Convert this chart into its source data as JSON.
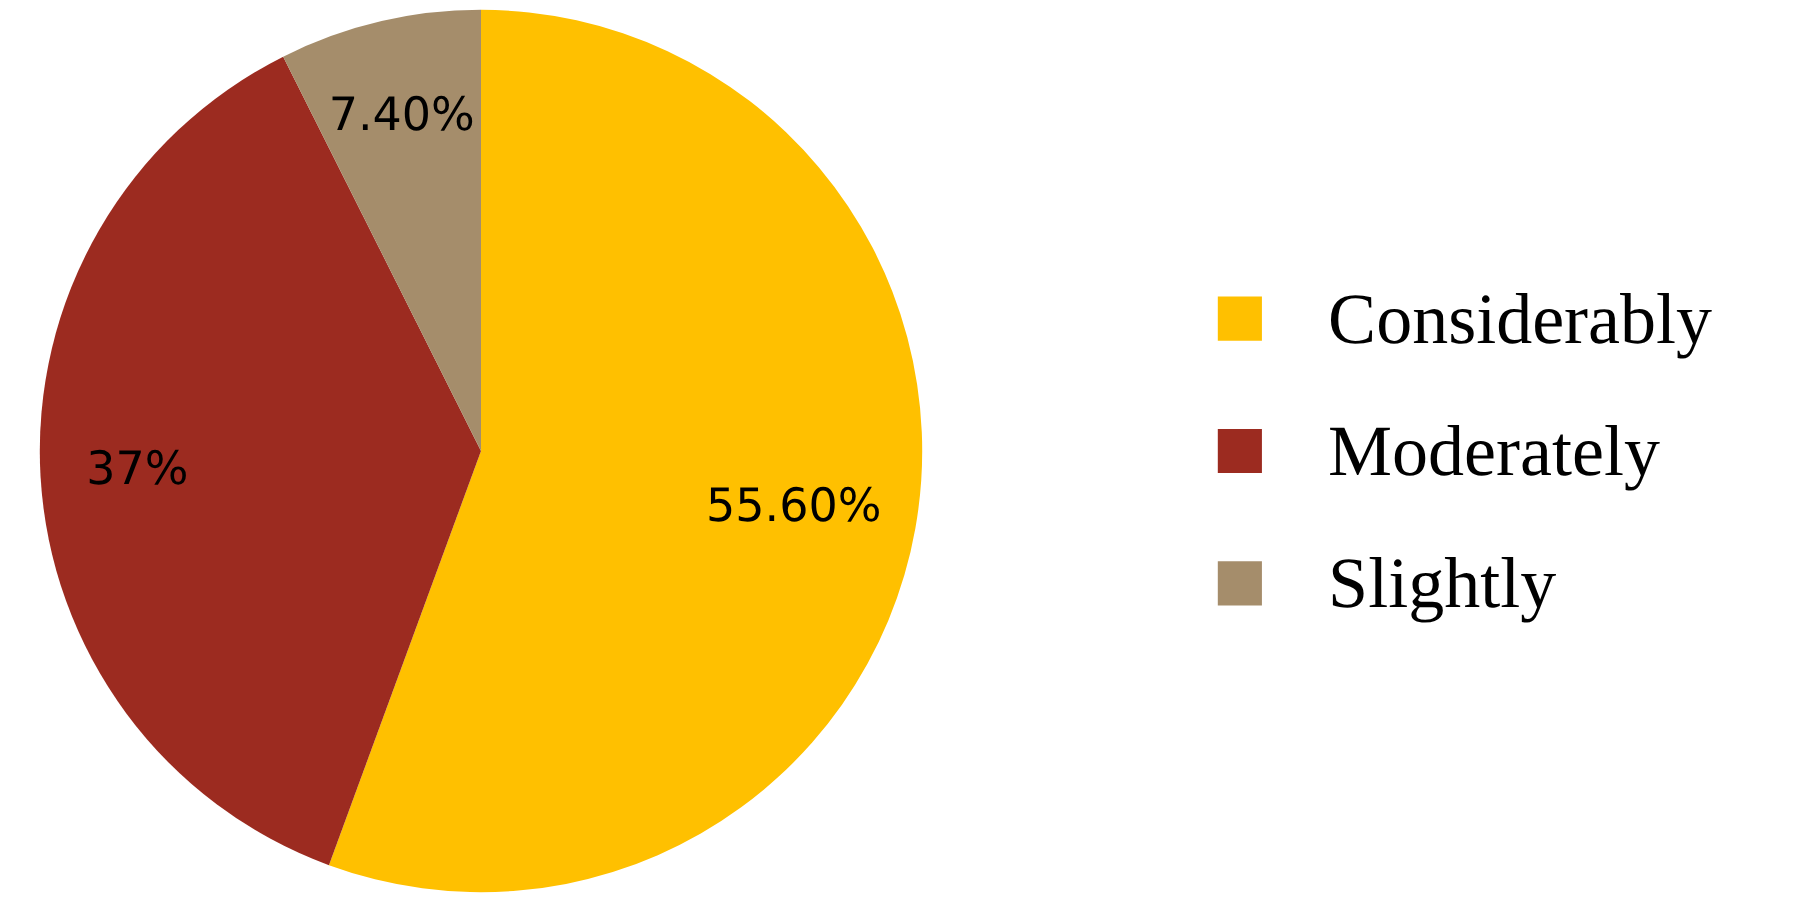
{
  "chart_data": {
    "type": "pie",
    "categories": [
      "Considerably",
      "Moderately",
      "Slightly"
    ],
    "values": [
      55.6,
      37,
      7.4
    ],
    "colors": [
      "#ffc000",
      "#9c2b20",
      "#a58d6b"
    ],
    "value_labels": [
      "55.60%",
      "37%",
      "7.40%"
    ],
    "legend": "right"
  }
}
